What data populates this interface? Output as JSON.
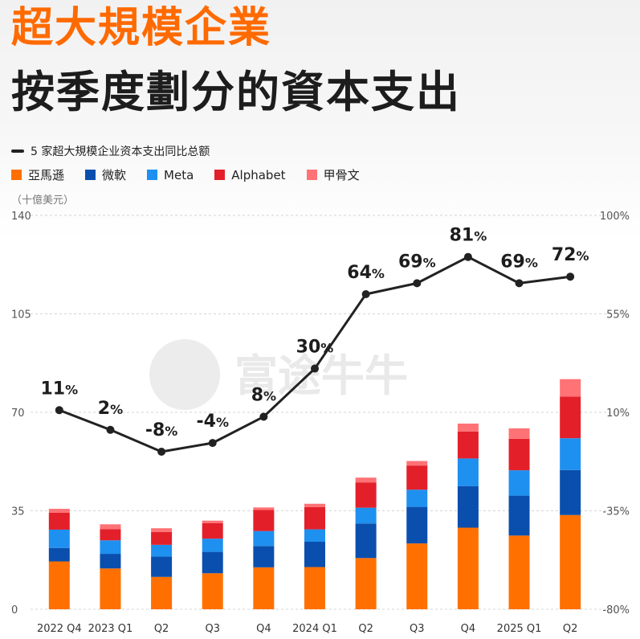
{
  "title_line1": "超大規模企業",
  "title_line2": "按季度劃分的資本支出",
  "unit_label": "（十億美元）",
  "watermark": "富途牛牛",
  "chart_data": {
    "type": "bar",
    "stacked": true,
    "categories": [
      "2022 Q4",
      "2023 Q1",
      "Q2",
      "Q3",
      "Q4",
      "2024 Q1",
      "Q2",
      "Q3",
      "Q4",
      "2025 Q1",
      "Q2"
    ],
    "series": [
      {
        "name": "亞馬遜",
        "color": "#ff7000",
        "values": [
          17.0,
          14.5,
          11.5,
          12.8,
          14.9,
          15.0,
          18.2,
          23.4,
          29.0,
          26.2,
          33.5
        ]
      },
      {
        "name": "微軟",
        "color": "#0a4fae",
        "values": [
          4.8,
          5.2,
          7.2,
          7.6,
          7.6,
          9.0,
          12.3,
          13.0,
          14.8,
          14.2,
          16.0
        ]
      },
      {
        "name": "Meta",
        "color": "#1e90f0",
        "values": [
          6.5,
          4.8,
          4.2,
          4.7,
          5.3,
          4.4,
          5.6,
          6.1,
          9.8,
          9.0,
          11.3
        ]
      },
      {
        "name": "Alphabet",
        "color": "#e3202a",
        "values": [
          6.0,
          4.0,
          4.6,
          5.5,
          7.5,
          7.9,
          9.0,
          8.6,
          9.6,
          11.2,
          14.8
        ]
      },
      {
        "name": "甲骨文",
        "color": "#ff7275",
        "values": [
          1.4,
          1.7,
          1.3,
          0.9,
          0.9,
          1.2,
          1.7,
          1.6,
          2.8,
          3.7,
          6.2
        ]
      }
    ],
    "line_series": {
      "name": "5 家超大規模企业资本支出同比总额",
      "color": "#222222",
      "values": [
        11,
        2,
        -8,
        -4,
        8,
        30,
        64,
        69,
        81,
        69,
        72
      ],
      "labels": [
        "11",
        "2",
        "-8",
        "-4",
        "8",
        "30",
        "64",
        "69",
        "81",
        "69",
        "72"
      ],
      "label_suffix": "%"
    },
    "ylim": [
      0,
      140
    ],
    "yticks": [
      "0",
      "35",
      "70",
      "105",
      "140"
    ],
    "y2lim": [
      -80,
      100
    ],
    "y2ticks": [
      "-80%",
      "-35%",
      "10%",
      "55%",
      "100%"
    ],
    "grid": true
  }
}
